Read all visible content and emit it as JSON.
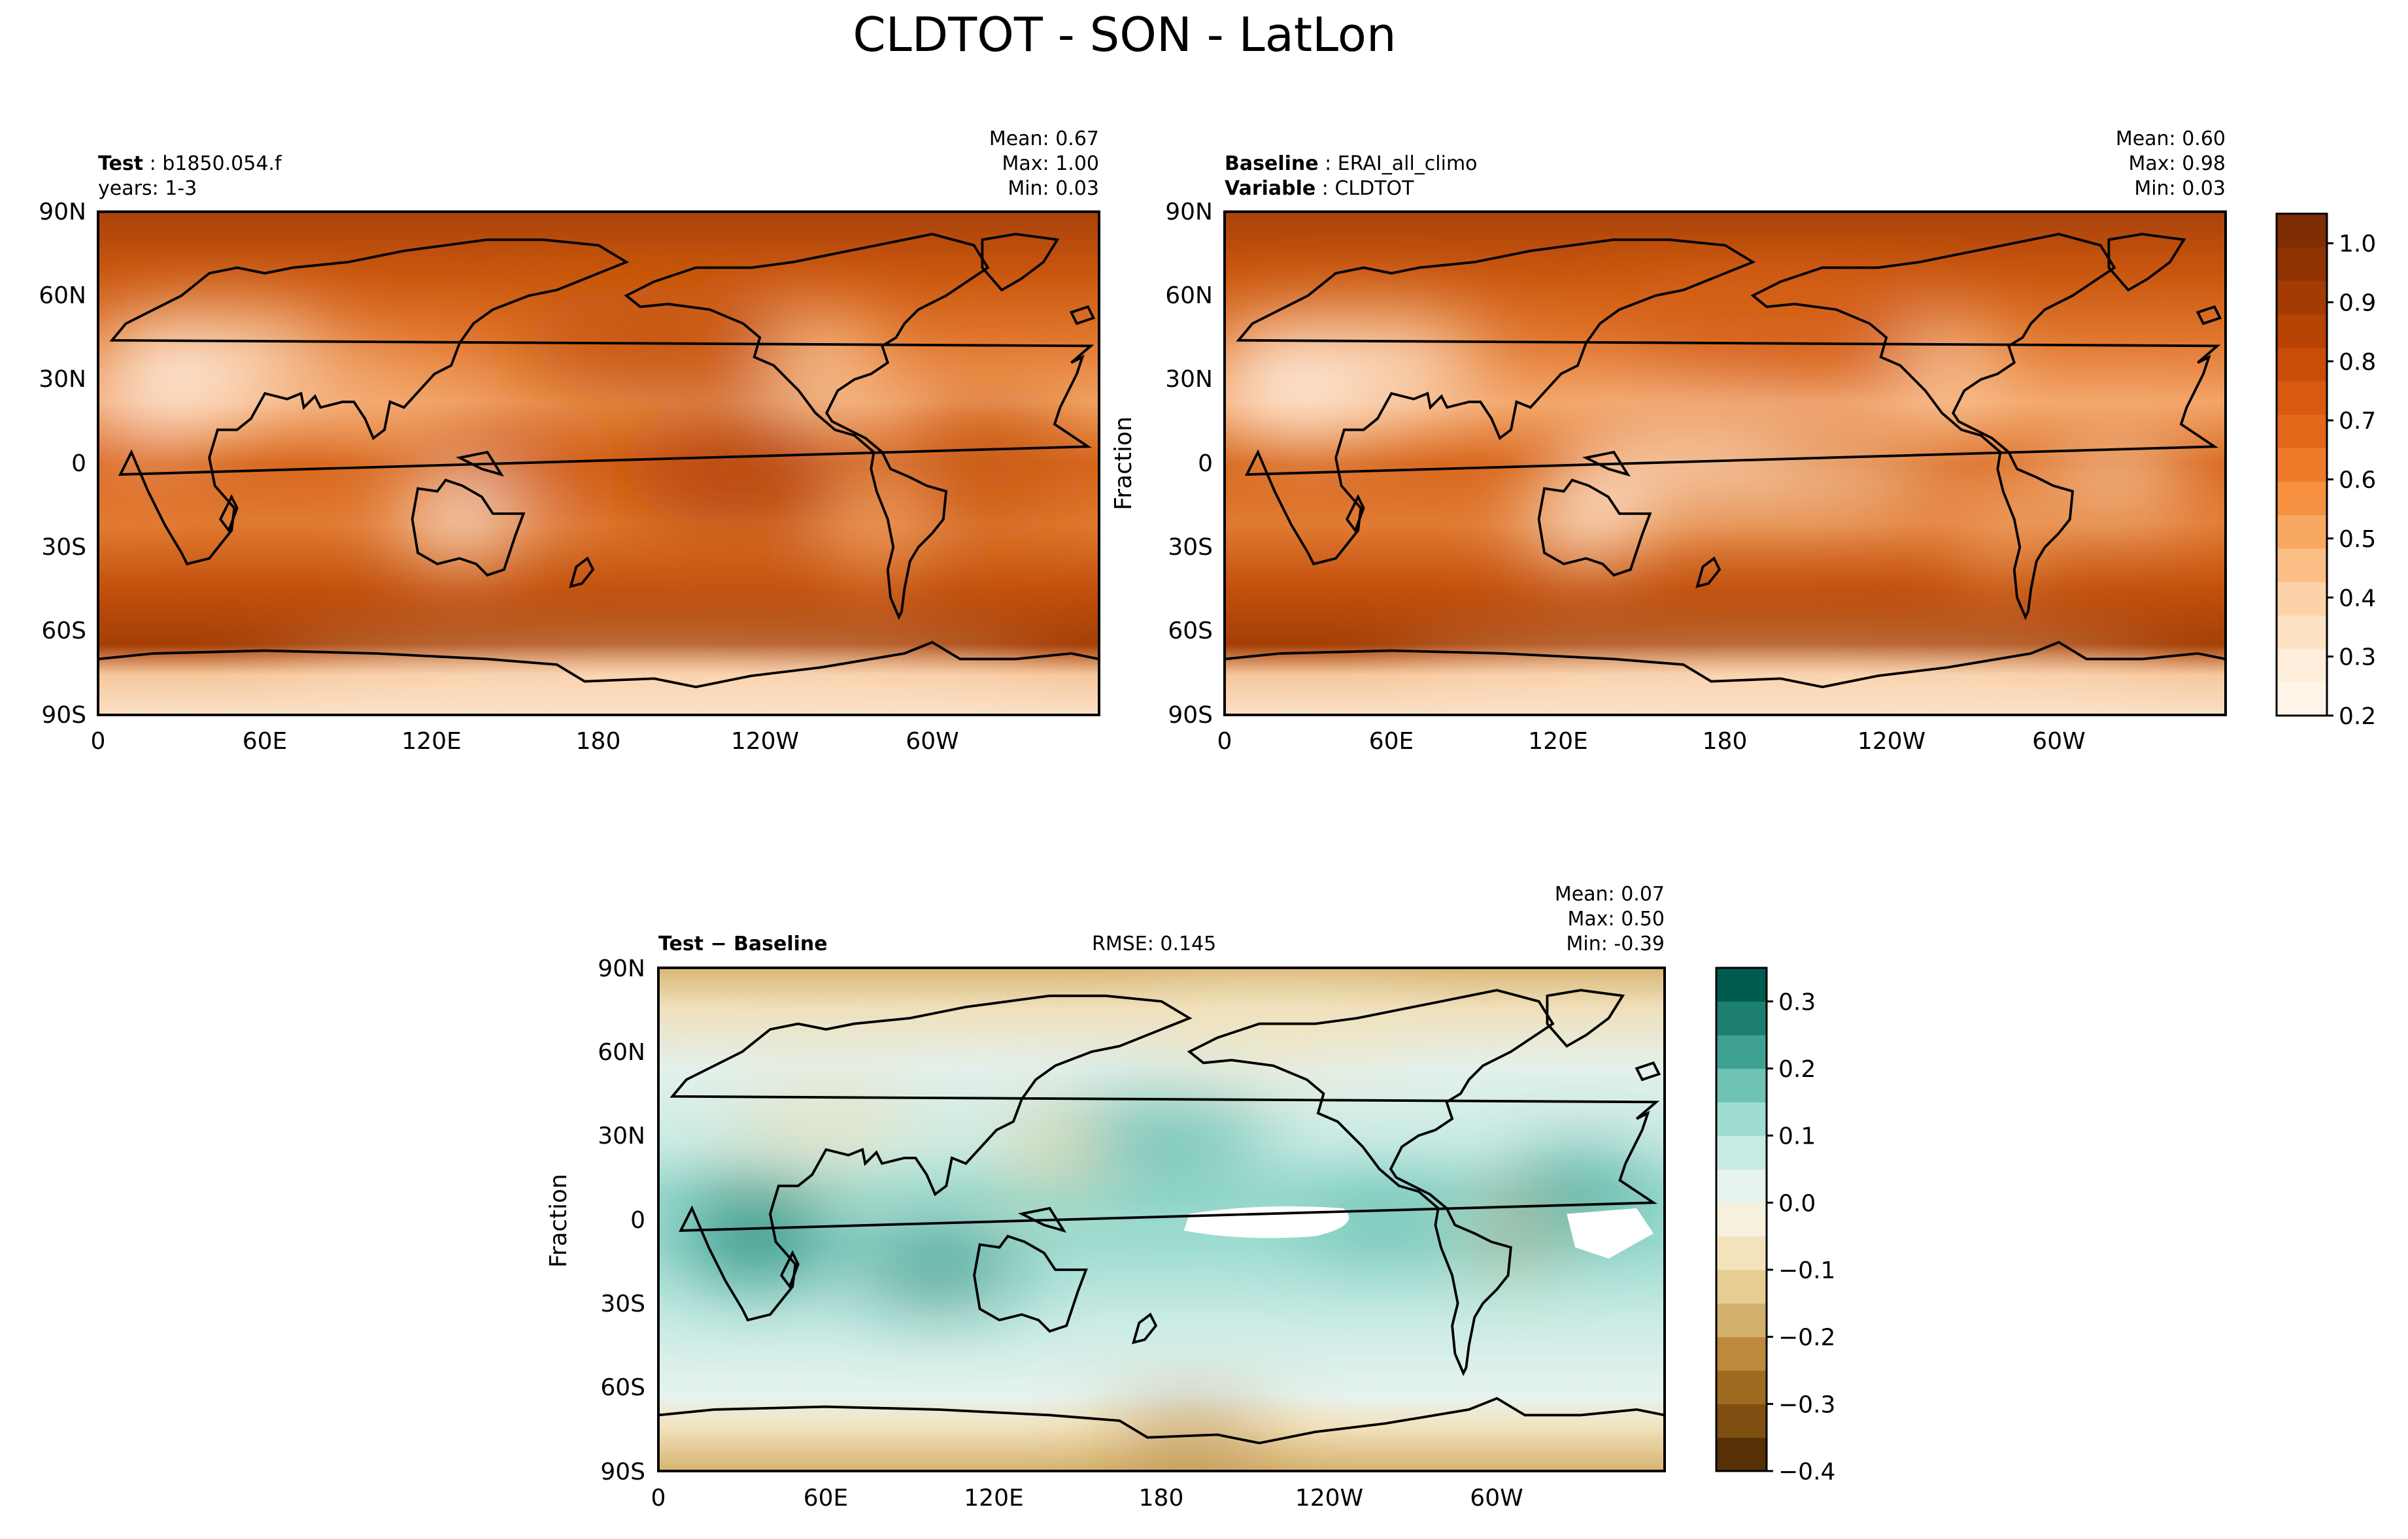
{
  "figure_title": "CLDTOT - SON - LatLon",
  "panels": {
    "test": {
      "name_key": "Test",
      "name_value": "b1850.054.f",
      "line2": "years: 1-3",
      "stats": [
        "Mean:  0.67",
        "Max:  1.00",
        "Min:  0.03"
      ]
    },
    "baseline": {
      "name_key": "Baseline",
      "name_value": "ERAI_all_climo",
      "var_key": "Variable",
      "var_value": "CLDTOT",
      "ylabel": "Fraction",
      "stats": [
        "Mean:  0.60",
        "Max:  0.98",
        "Min:  0.03"
      ]
    },
    "diff": {
      "title": "Test − Baseline",
      "rmse": "RMSE: 0.145",
      "ylabel": "Fraction",
      "stats": [
        "Mean:  0.07",
        "Max:  0.50",
        "Min: -0.39"
      ]
    }
  },
  "axes": {
    "lat_ticks": [
      "90N",
      "60N",
      "30N",
      "0",
      "30S",
      "60S",
      "90S"
    ],
    "lon_ticks": [
      "0",
      "60E",
      "120E",
      "180",
      "120W",
      "60W"
    ]
  },
  "colorbars": {
    "top": {
      "ticks": [
        "0.2",
        "0.3",
        "0.4",
        "0.5",
        "0.6",
        "0.7",
        "0.8",
        "0.9",
        "1.0"
      ],
      "range": [
        0.2,
        1.05
      ],
      "colors": [
        "#fff4e8",
        "#feeedb",
        "#fde2c4",
        "#fcd3a8",
        "#fbbf86",
        "#f9a862",
        "#f59140",
        "#ee7b2a",
        "#e3681a",
        "#d75a10",
        "#c94d07",
        "#b74304",
        "#a33b03",
        "#903303",
        "#7f2d04"
      ]
    },
    "diff": {
      "ticks": [
        "0.3",
        "0.2",
        "0.1",
        "0.0",
        "−0.1",
        "−0.2",
        "−0.3",
        "−0.4"
      ],
      "range": [
        -0.4,
        0.35
      ],
      "colors": [
        "#563105",
        "#7e4f11",
        "#9f6b20",
        "#bd8a3c",
        "#d3b06b",
        "#e6cd94",
        "#f3e3bd",
        "#f6f0dc",
        "#e6f3ef",
        "#c7ebe4",
        "#9fdcd1",
        "#6ec3b5",
        "#3fa191",
        "#1c7f6f",
        "#005c4e"
      ]
    }
  },
  "chart_data": [
    {
      "type": "heatmap",
      "title": "CLDTOT - SON - LatLon",
      "series_label": "Test: b1850.054.f, years: 1-3",
      "x_axis": "longitude",
      "xticks": [
        "0",
        "60E",
        "120E",
        "180",
        "120W",
        "60W"
      ],
      "y_axis": "latitude",
      "yticks": [
        "90N",
        "60N",
        "30N",
        "0",
        "30S",
        "60S",
        "90S"
      ],
      "colorbar_range": [
        0.2,
        1.05
      ],
      "mean": 0.67,
      "max": 1.0,
      "min": 0.03
    },
    {
      "type": "heatmap",
      "series_label": "Baseline: ERAI_all_climo",
      "variable": "CLDTOT",
      "ylabel": "Fraction",
      "xticks": [
        "0",
        "60E",
        "120E",
        "180",
        "120W",
        "60W"
      ],
      "yticks": [
        "90N",
        "60N",
        "30N",
        "0",
        "30S",
        "60S",
        "90S"
      ],
      "colorbar_range": [
        0.2,
        1.05
      ],
      "mean": 0.6,
      "max": 0.98,
      "min": 0.03
    },
    {
      "type": "heatmap",
      "series_label": "Test − Baseline",
      "rmse": 0.145,
      "ylabel": "Fraction",
      "xticks": [
        "0",
        "60E",
        "120E",
        "180",
        "120W",
        "60W"
      ],
      "yticks": [
        "90N",
        "60N",
        "30N",
        "0",
        "30S",
        "60S",
        "90S"
      ],
      "colorbar_range": [
        -0.4,
        0.35
      ],
      "mean": 0.07,
      "max": 0.5,
      "min": -0.39
    }
  ]
}
